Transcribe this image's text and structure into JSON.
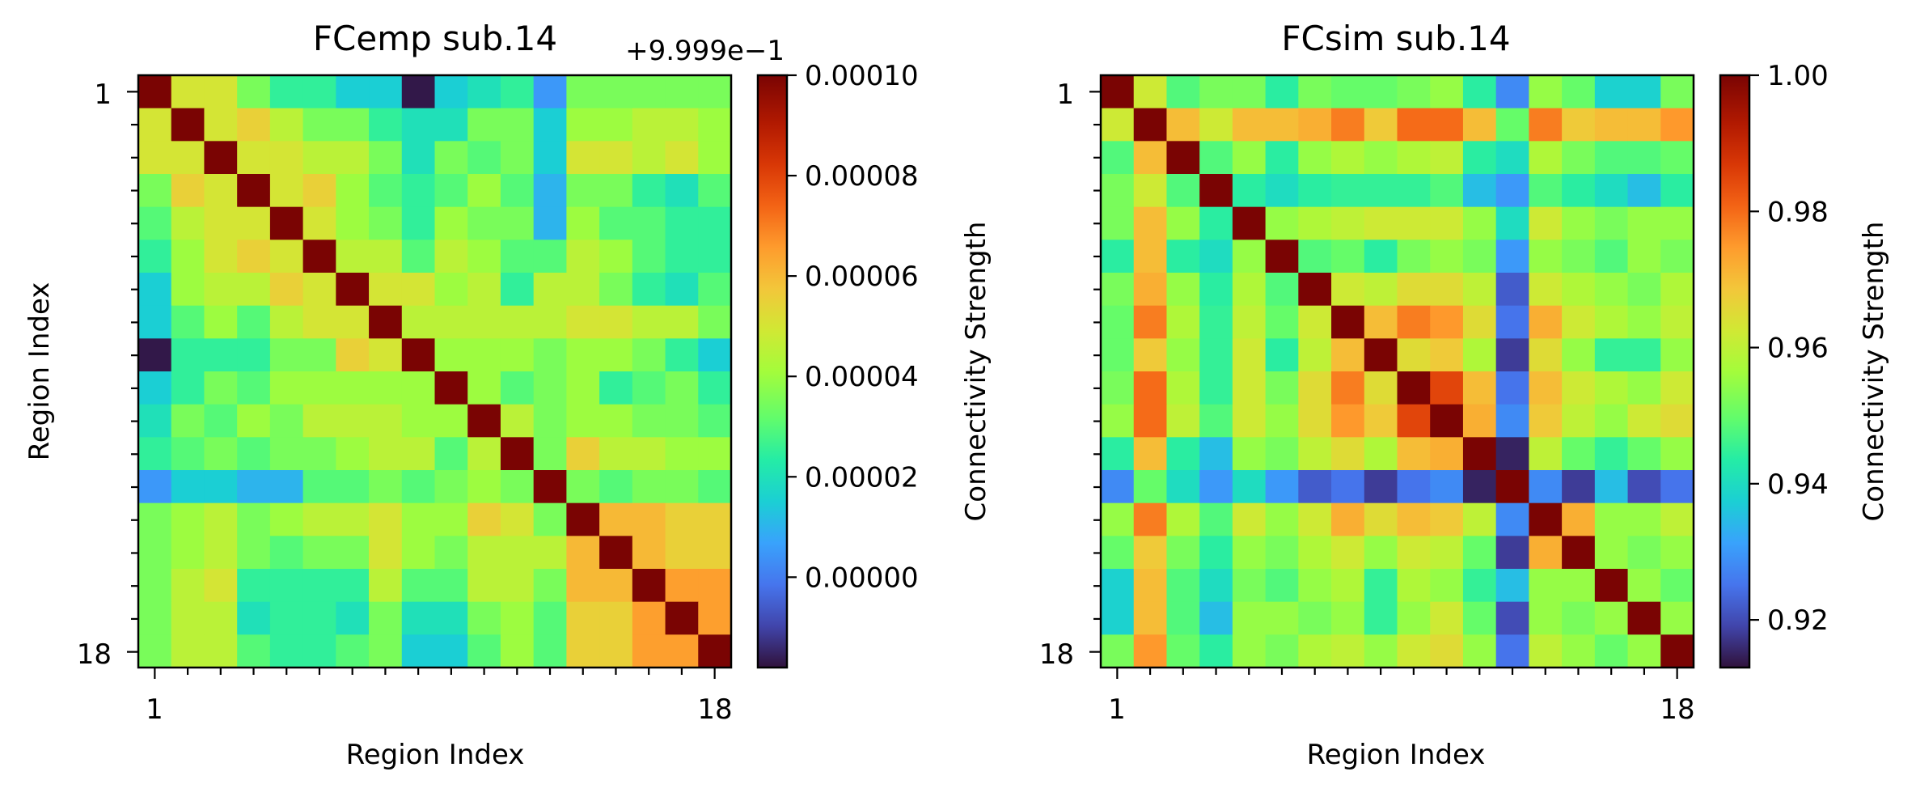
{
  "chart_data": [
    {
      "type": "heatmap",
      "title": "FCemp sub.14",
      "offset_label": "+9.999e−1",
      "xlabel": "Region Index",
      "ylabel": "Region Index",
      "x_ticklabels": [
        "1",
        "18"
      ],
      "y_ticklabels": [
        "1",
        "18"
      ],
      "colorbar": {
        "label": "Connectivity Strength",
        "colormap": "turbo",
        "range": [
          -1.8e-05,
          0.0001
        ],
        "ticks": [
          "0.00000",
          "0.00002",
          "0.00004",
          "0.00006",
          "0.00008",
          "0.00010"
        ],
        "tick_values": [
          0.0,
          2e-05,
          4e-05,
          6e-05,
          8e-05,
          0.0001
        ]
      },
      "values_scaled_1e-5": [
        [
          10.0,
          5.0,
          5.0,
          3.5,
          2.5,
          2.5,
          1.5,
          1.5,
          -1.7,
          1.5,
          2.0,
          2.5,
          0.5,
          3.5,
          3.5,
          3.5,
          3.5,
          3.5
        ],
        [
          5.0,
          10.0,
          5.0,
          5.5,
          4.5,
          3.5,
          3.5,
          2.5,
          2.0,
          2.0,
          3.5,
          3.5,
          1.5,
          4.0,
          4.0,
          4.5,
          4.5,
          4.0
        ],
        [
          5.0,
          5.0,
          10.0,
          5.0,
          5.0,
          4.5,
          4.5,
          3.5,
          2.0,
          3.5,
          3.0,
          3.5,
          1.5,
          5.0,
          5.0,
          4.5,
          5.0,
          4.0
        ],
        [
          3.5,
          5.5,
          5.0,
          10.0,
          5.0,
          5.5,
          4.0,
          3.0,
          2.5,
          3.0,
          4.0,
          3.0,
          1.0,
          3.5,
          3.5,
          2.5,
          2.0,
          3.0
        ],
        [
          3.0,
          4.5,
          5.0,
          5.0,
          10.0,
          5.0,
          4.0,
          3.5,
          2.5,
          4.0,
          3.5,
          3.5,
          1.0,
          4.0,
          3.0,
          3.0,
          2.5,
          2.5
        ],
        [
          2.5,
          4.0,
          5.0,
          5.5,
          5.0,
          10.0,
          4.5,
          4.5,
          3.0,
          4.5,
          4.0,
          3.0,
          3.0,
          4.5,
          4.0,
          3.0,
          2.5,
          2.5
        ],
        [
          1.5,
          4.0,
          4.5,
          4.5,
          5.5,
          5.0,
          10.0,
          5.0,
          5.0,
          4.0,
          4.5,
          2.5,
          4.5,
          4.5,
          3.5,
          2.5,
          2.0,
          3.0
        ],
        [
          1.5,
          3.0,
          4.0,
          3.0,
          4.5,
          5.0,
          5.0,
          10.0,
          4.5,
          4.5,
          4.5,
          4.5,
          4.5,
          5.0,
          5.0,
          4.5,
          4.5,
          3.5
        ],
        [
          -1.7,
          2.5,
          2.5,
          2.5,
          3.5,
          3.5,
          5.5,
          5.0,
          10.0,
          4.0,
          4.0,
          4.0,
          3.5,
          4.0,
          4.0,
          3.5,
          2.5,
          1.5
        ],
        [
          1.5,
          2.5,
          3.5,
          3.0,
          4.0,
          4.0,
          4.0,
          4.0,
          4.0,
          10.0,
          4.0,
          3.0,
          3.5,
          4.0,
          2.5,
          3.0,
          3.5,
          2.5
        ],
        [
          2.0,
          3.5,
          3.0,
          4.0,
          3.5,
          4.5,
          4.5,
          4.5,
          4.0,
          4.0,
          10.0,
          4.5,
          3.5,
          4.0,
          4.0,
          3.5,
          3.5,
          3.0
        ],
        [
          2.5,
          3.0,
          3.5,
          3.0,
          3.5,
          3.5,
          4.0,
          4.5,
          4.5,
          3.0,
          4.5,
          10.0,
          3.5,
          5.5,
          4.5,
          4.5,
          4.0,
          4.0
        ],
        [
          0.5,
          1.5,
          1.5,
          1.0,
          1.0,
          3.0,
          3.0,
          3.5,
          3.0,
          3.5,
          4.0,
          3.5,
          10.0,
          3.5,
          3.0,
          3.5,
          3.5,
          3.0
        ],
        [
          3.5,
          4.0,
          4.5,
          3.5,
          4.0,
          4.5,
          4.5,
          5.0,
          4.0,
          4.0,
          5.5,
          5.0,
          3.5,
          10.0,
          6.0,
          6.0,
          5.5,
          5.5
        ],
        [
          3.5,
          4.0,
          4.5,
          3.5,
          3.0,
          3.5,
          3.5,
          5.0,
          4.0,
          3.5,
          4.5,
          4.5,
          4.5,
          6.0,
          10.0,
          6.0,
          5.5,
          5.5
        ],
        [
          3.5,
          4.5,
          5.0,
          2.5,
          2.5,
          2.5,
          2.5,
          4.5,
          3.0,
          3.0,
          4.5,
          4.5,
          3.5,
          6.0,
          6.0,
          10.0,
          6.5,
          6.5
        ],
        [
          3.5,
          4.5,
          4.5,
          2.0,
          2.5,
          2.5,
          2.0,
          3.5,
          2.0,
          2.0,
          3.5,
          4.0,
          3.0,
          5.5,
          5.5,
          6.5,
          10.0,
          6.5
        ],
        [
          3.5,
          4.5,
          4.5,
          3.0,
          2.5,
          2.5,
          3.0,
          3.5,
          1.5,
          1.5,
          3.0,
          4.0,
          3.0,
          5.5,
          5.5,
          6.5,
          6.5,
          10.0
        ]
      ]
    },
    {
      "type": "heatmap",
      "title": "FCsim sub.14",
      "xlabel": "Region Index",
      "ylabel": "",
      "x_ticklabels": [
        "1",
        "18"
      ],
      "y_ticklabels": [
        "1",
        "18"
      ],
      "colorbar": {
        "label": "Connectivity Strength",
        "colormap": "turbo",
        "range": [
          0.913,
          1.0
        ],
        "ticks": [
          "0.92",
          "0.94",
          "0.96",
          "0.98",
          "1.00"
        ],
        "tick_values": [
          0.92,
          0.94,
          0.96,
          0.98,
          1.0
        ]
      },
      "values": [
        [
          1.0,
          0.962,
          0.948,
          0.952,
          0.952,
          0.944,
          0.952,
          0.95,
          0.95,
          0.952,
          0.955,
          0.944,
          0.928,
          0.955,
          0.95,
          0.938,
          0.938,
          0.952
        ],
        [
          0.962,
          1.0,
          0.97,
          0.962,
          0.97,
          0.97,
          0.972,
          0.978,
          0.968,
          0.98,
          0.98,
          0.97,
          0.95,
          0.978,
          0.968,
          0.97,
          0.97,
          0.975
        ],
        [
          0.948,
          0.97,
          1.0,
          0.948,
          0.955,
          0.944,
          0.955,
          0.958,
          0.955,
          0.958,
          0.96,
          0.944,
          0.94,
          0.958,
          0.952,
          0.948,
          0.948,
          0.95
        ],
        [
          0.952,
          0.962,
          0.948,
          1.0,
          0.944,
          0.94,
          0.944,
          0.945,
          0.945,
          0.945,
          0.948,
          0.935,
          0.93,
          0.948,
          0.944,
          0.94,
          0.935,
          0.944
        ],
        [
          0.952,
          0.97,
          0.955,
          0.944,
          1.0,
          0.955,
          0.958,
          0.96,
          0.962,
          0.962,
          0.962,
          0.955,
          0.94,
          0.962,
          0.955,
          0.952,
          0.955,
          0.955
        ],
        [
          0.944,
          0.97,
          0.944,
          0.94,
          0.955,
          1.0,
          0.948,
          0.95,
          0.944,
          0.952,
          0.955,
          0.952,
          0.93,
          0.955,
          0.952,
          0.948,
          0.955,
          0.952
        ],
        [
          0.952,
          0.972,
          0.955,
          0.944,
          0.958,
          0.948,
          1.0,
          0.962,
          0.96,
          0.965,
          0.965,
          0.96,
          0.922,
          0.962,
          0.958,
          0.955,
          0.952,
          0.958
        ],
        [
          0.95,
          0.978,
          0.958,
          0.945,
          0.96,
          0.95,
          0.962,
          1.0,
          0.97,
          0.978,
          0.975,
          0.965,
          0.925,
          0.972,
          0.962,
          0.958,
          0.955,
          0.96
        ],
        [
          0.95,
          0.968,
          0.955,
          0.945,
          0.962,
          0.944,
          0.96,
          0.97,
          1.0,
          0.965,
          0.968,
          0.958,
          0.918,
          0.965,
          0.955,
          0.945,
          0.945,
          0.955
        ],
        [
          0.952,
          0.98,
          0.958,
          0.945,
          0.962,
          0.952,
          0.965,
          0.978,
          0.965,
          1.0,
          0.985,
          0.97,
          0.925,
          0.97,
          0.962,
          0.958,
          0.955,
          0.962
        ],
        [
          0.955,
          0.98,
          0.96,
          0.948,
          0.962,
          0.955,
          0.965,
          0.975,
          0.968,
          0.985,
          1.0,
          0.972,
          0.928,
          0.968,
          0.96,
          0.955,
          0.962,
          0.965
        ],
        [
          0.944,
          0.97,
          0.944,
          0.935,
          0.955,
          0.952,
          0.96,
          0.965,
          0.958,
          0.97,
          0.972,
          1.0,
          0.915,
          0.96,
          0.95,
          0.945,
          0.95,
          0.955
        ],
        [
          0.928,
          0.95,
          0.94,
          0.93,
          0.94,
          0.93,
          0.922,
          0.925,
          0.918,
          0.925,
          0.928,
          0.915,
          1.0,
          0.928,
          0.918,
          0.935,
          0.92,
          0.925
        ],
        [
          0.955,
          0.978,
          0.958,
          0.948,
          0.962,
          0.955,
          0.962,
          0.972,
          0.965,
          0.97,
          0.968,
          0.96,
          0.928,
          1.0,
          0.972,
          0.955,
          0.955,
          0.96
        ],
        [
          0.95,
          0.968,
          0.952,
          0.944,
          0.955,
          0.952,
          0.958,
          0.962,
          0.955,
          0.962,
          0.96,
          0.95,
          0.918,
          0.972,
          1.0,
          0.955,
          0.952,
          0.955
        ],
        [
          0.938,
          0.97,
          0.948,
          0.94,
          0.952,
          0.948,
          0.955,
          0.958,
          0.945,
          0.958,
          0.955,
          0.945,
          0.935,
          0.955,
          0.955,
          1.0,
          0.955,
          0.95
        ],
        [
          0.938,
          0.97,
          0.948,
          0.935,
          0.955,
          0.955,
          0.952,
          0.955,
          0.945,
          0.955,
          0.962,
          0.95,
          0.92,
          0.955,
          0.952,
          0.955,
          1.0,
          0.955
        ],
        [
          0.952,
          0.975,
          0.95,
          0.944,
          0.955,
          0.952,
          0.958,
          0.96,
          0.955,
          0.962,
          0.965,
          0.955,
          0.925,
          0.96,
          0.955,
          0.95,
          0.955,
          1.0
        ]
      ]
    }
  ]
}
